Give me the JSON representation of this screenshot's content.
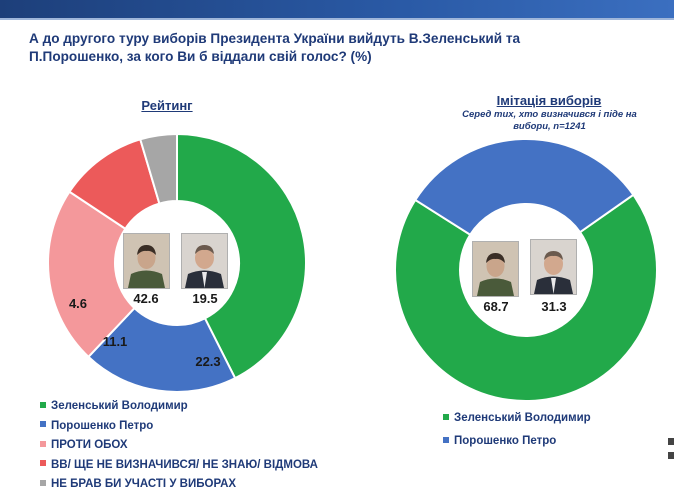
{
  "title": "А до другого туру виборів Президента України вийдуть В.Зеленський та П.Порошенко, за кого Ви б віддали свій голос? (%)",
  "colors": {
    "zelensky": "#22a94a",
    "poroshenko": "#4472c4",
    "against_both": "#f4989b",
    "undecided": "#ec5a5a",
    "not_vote": "#a6a6a6",
    "text": "#1f3a78"
  },
  "chart_data": [
    {
      "type": "pie",
      "variant": "donut",
      "title": "Рейтинг",
      "subtitle": "",
      "legend_position": "bottom-left",
      "slices": [
        {
          "label": "Зеленський Володимир",
          "value": 42.6,
          "color": "#22a94a"
        },
        {
          "label": "Порошенко Петро",
          "value": 19.5,
          "color": "#4472c4"
        },
        {
          "label": "ПРОТИ ОБОХ",
          "value": 22.3,
          "color": "#f4989b"
        },
        {
          "label": "ВВ/ ЩЕ НЕ ВИЗНАЧИВСЯ/ НЕ ЗНАЮ/ ВІДМОВА",
          "value": 11.1,
          "color": "#ec5a5a"
        },
        {
          "label": "НЕ БРАВ БИ УЧАСТІ У ВИБОРАХ",
          "value": 4.6,
          "color": "#a6a6a6"
        }
      ]
    },
    {
      "type": "pie",
      "variant": "donut",
      "title": "Імітація виборів",
      "subtitle": "Серед тих, хто визначився і піде на вибори, n=1241",
      "legend_position": "bottom",
      "slices": [
        {
          "label": "Зеленський Володимир",
          "value": 68.7,
          "color": "#22a94a"
        },
        {
          "label": "Порошенко Петро",
          "value": 31.3,
          "color": "#4472c4"
        }
      ]
    }
  ]
}
